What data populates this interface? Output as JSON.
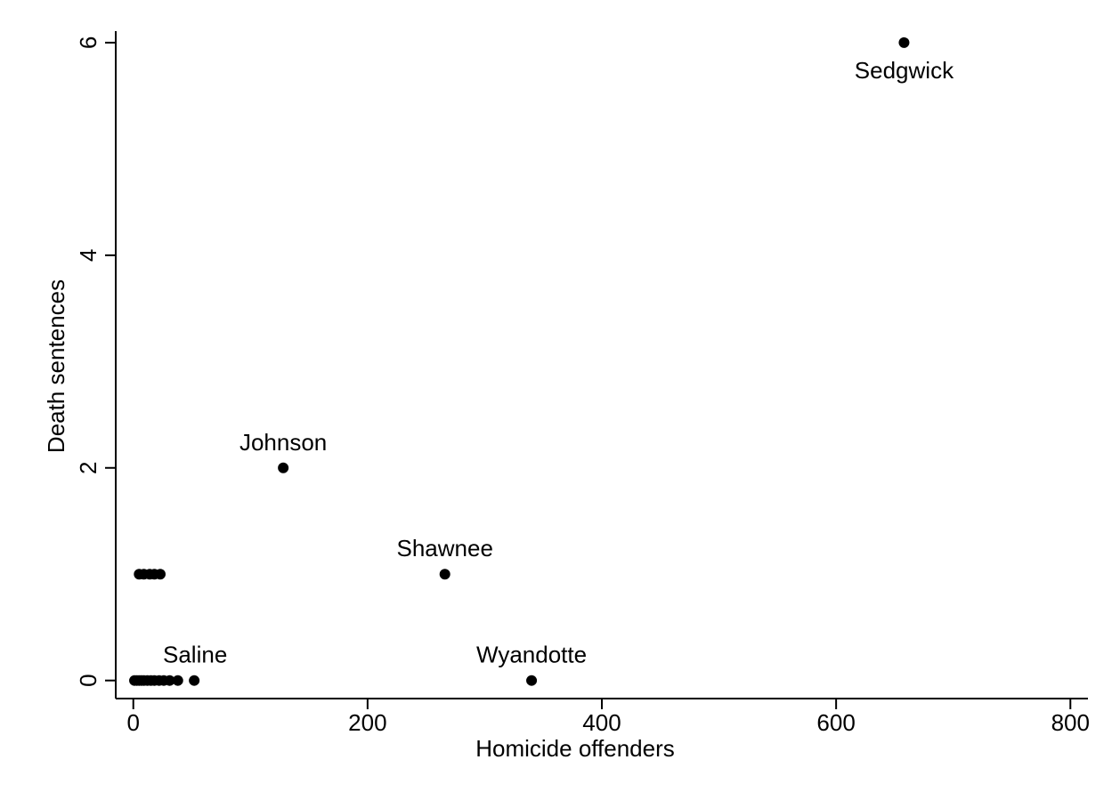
{
  "chart_data": {
    "type": "scatter",
    "xlabel": "Homicide offenders",
    "ylabel": "Death sentences",
    "xlim": [
      -15,
      815
    ],
    "ylim": [
      -0.17,
      6.15
    ],
    "xticks": [
      0,
      200,
      400,
      600,
      800
    ],
    "yticks": [
      0,
      2,
      4,
      6
    ],
    "grid": false,
    "marker_color": "#000000",
    "points": [
      {
        "x": 1,
        "y": 0
      },
      {
        "x": 3,
        "y": 0
      },
      {
        "x": 5,
        "y": 0
      },
      {
        "x": 7,
        "y": 0
      },
      {
        "x": 9,
        "y": 0
      },
      {
        "x": 12,
        "y": 0
      },
      {
        "x": 15,
        "y": 0
      },
      {
        "x": 18,
        "y": 0
      },
      {
        "x": 22,
        "y": 0
      },
      {
        "x": 26,
        "y": 0
      },
      {
        "x": 31,
        "y": 0
      },
      {
        "x": 38,
        "y": 0
      },
      {
        "x": 52,
        "y": 0,
        "label": "Saline",
        "label_dx": 1.0,
        "label_dy": -20
      },
      {
        "x": 340,
        "y": 0,
        "label": "Wyandotte",
        "label_dx": 0,
        "label_dy": -20
      },
      {
        "x": 5,
        "y": 1
      },
      {
        "x": 9,
        "y": 1
      },
      {
        "x": 14,
        "y": 1
      },
      {
        "x": 18,
        "y": 1
      },
      {
        "x": 23,
        "y": 1
      },
      {
        "x": 266,
        "y": 1,
        "label": "Shawnee",
        "label_dx": 0,
        "label_dy": -20
      },
      {
        "x": 128,
        "y": 2,
        "label": "Johnson",
        "label_dx": 0,
        "label_dy": -20
      },
      {
        "x": 658,
        "y": 6,
        "label": "Sedgwick",
        "label_dx": 0,
        "label_dy": 40
      }
    ]
  }
}
